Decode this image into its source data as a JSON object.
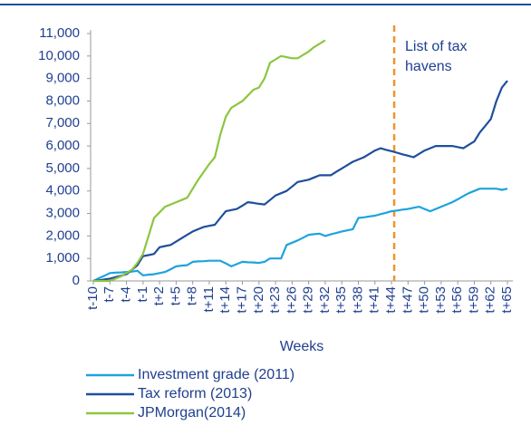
{
  "chart_data": {
    "type": "line",
    "xlabel": "Weeks",
    "categories": [
      "t-10",
      null,
      null,
      "t-7",
      null,
      null,
      "t-4",
      null,
      null,
      "t-1",
      null,
      null,
      "t+2",
      null,
      null,
      "t+5",
      null,
      null,
      "t+8",
      null,
      null,
      "t+11",
      null,
      null,
      "t+14",
      null,
      null,
      "t+17",
      null,
      null,
      "t+20",
      null,
      null,
      "t+23",
      null,
      null,
      "t+26",
      null,
      null,
      "t+29",
      null,
      null,
      "t+32",
      null,
      null,
      "t+35",
      null,
      null,
      "t+38",
      null,
      null,
      "t+41",
      null,
      null,
      "t+44",
      null,
      null,
      "t+47",
      null,
      null,
      "t+50",
      null,
      null,
      "t+53",
      null,
      null,
      "t+56",
      null,
      null,
      "t+59",
      null,
      null,
      "t+62",
      null,
      null,
      "t+65"
    ],
    "ylim": [
      0,
      11000
    ],
    "yticks": [
      0,
      {
        "value": 1000,
        "label": "1,000"
      },
      {
        "value": 2000,
        "label": "2,000"
      },
      {
        "value": 3000,
        "label": "3,000"
      },
      {
        "value": 4000,
        "label": "4,000"
      },
      {
        "value": 5000,
        "label": "5,000"
      },
      {
        "value": 6000,
        "label": "6,000"
      },
      {
        "value": 7000,
        "label": "7,000"
      },
      {
        "value": 8000,
        "label": "8,000"
      },
      {
        "value": 9000,
        "label": "9,000"
      },
      {
        "value": 10000,
        "label": "10,000"
      },
      {
        "value": 11000,
        "label": "11,000"
      }
    ],
    "grid": false,
    "legend": "bottom",
    "series": [
      {
        "name": "Investment grade (2011)",
        "color": "#1ea3dc",
        "values": [
          0,
          120,
          230,
          350,
          370,
          380,
          400,
          420,
          450,
          250,
          280,
          300,
          350,
          400,
          520,
          650,
          680,
          700,
          850,
          870,
          880,
          900,
          900,
          900,
          780,
          650,
          750,
          850,
          830,
          820,
          800,
          850,
          1000,
          1000,
          1000,
          1600,
          1700,
          1800,
          1920,
          2050,
          2080,
          2100,
          2000,
          2070,
          2130,
          2200,
          2250,
          2300,
          2800,
          2830,
          2870,
          2900,
          2970,
          3030,
          3100,
          3130,
          3170,
          3200,
          3250,
          3300,
          3200,
          3100,
          3200,
          3300,
          3400,
          3500,
          3630,
          3770,
          3900,
          4000,
          4100,
          4100,
          4100,
          4100,
          4050,
          4100
        ]
      },
      {
        "name": "Tax reform (2013)",
        "color": "#1f4e9c",
        "values": [
          0,
          30,
          70,
          100,
          170,
          230,
          300,
          500,
          700,
          1100,
          1150,
          1200,
          1500,
          1550,
          1600,
          1750,
          1900,
          2050,
          2200,
          2300,
          2400,
          2450,
          2500,
          2800,
          3100,
          3150,
          3200,
          3350,
          3500,
          3470,
          3430,
          3400,
          3600,
          3800,
          3900,
          4000,
          4200,
          4400,
          4450,
          4500,
          4600,
          4700,
          4700,
          4700,
          4850,
          5000,
          5150,
          5300,
          5400,
          5500,
          5650,
          5800,
          5900,
          5830,
          5770,
          5700,
          5630,
          5570,
          5500,
          5650,
          5800,
          5900,
          6000,
          6000,
          6000,
          6000,
          5950,
          5900,
          6050,
          6200,
          6600,
          6900,
          7200,
          8000,
          8600,
          8900
        ]
      },
      {
        "name": "JPMorgan(2014)",
        "color": "#8cc63f",
        "values": [
          0,
          0,
          0,
          0,
          100,
          200,
          350,
          500,
          800,
          1200,
          2000,
          2800,
          3050,
          3300,
          3400,
          3500,
          3600,
          3700,
          4100,
          4500,
          4850,
          5200,
          5500,
          6500,
          7300,
          7700,
          7850,
          8000,
          8250,
          8500,
          8600,
          9000,
          9700,
          9850,
          10000,
          9950,
          9900,
          9900,
          10050,
          10200,
          10400,
          10550,
          10700,
          null,
          null,
          null,
          null,
          null,
          null,
          null,
          null,
          null,
          null,
          null,
          null,
          null,
          null,
          null,
          null,
          null,
          null,
          null,
          null,
          null,
          null,
          null,
          null,
          null,
          null,
          null,
          null,
          null,
          null,
          null,
          null,
          null
        ]
      }
    ],
    "marker": {
      "category": "t+44",
      "color": "#f0932b",
      "lines": [
        "List of tax",
        "havens"
      ]
    }
  }
}
